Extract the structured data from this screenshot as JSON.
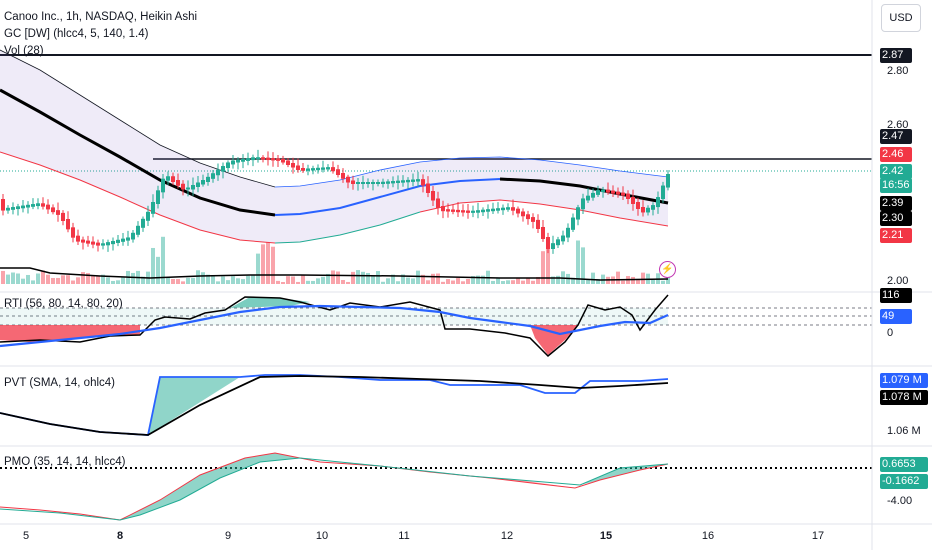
{
  "legend": {
    "symbol": "Canoo Inc., 1h, NASDAQ, Heikin Ashi",
    "gc": "GC [DW] (hlcc4, 5, 140, 1.4)",
    "vol": "Vol (28)",
    "rti": "RTI (56, 80, 14, 80, 20)",
    "pvt": "PVT (SMA, 14, ohlc4)",
    "pmo": "PMO (35, 14, 14, hlcc4)"
  },
  "currency_button": "USD",
  "price_axis": {
    "ticks": [
      "2.80",
      "2.60",
      "2.00"
    ],
    "tags": [
      {
        "text": "2.87",
        "color": "#131722"
      },
      {
        "text": "2.47",
        "color": "#131722"
      },
      {
        "text": "2.46",
        "color": "#f23645"
      },
      {
        "text": "2.42",
        "color": "#22ab94"
      },
      {
        "text": "16:56",
        "color": "#22ab94"
      },
      {
        "text": "2.39",
        "color": "#000000"
      },
      {
        "text": "2.30",
        "color": "#000000"
      },
      {
        "text": "2.21",
        "color": "#f23645"
      }
    ]
  },
  "rti_axis": {
    "ticks": [
      "0"
    ],
    "tags": [
      {
        "text": "116",
        "color": "#000000"
      },
      {
        "text": "49",
        "color": "#2962ff"
      }
    ]
  },
  "pvt_axis": {
    "ticks": [
      "1.06 M"
    ],
    "tags": [
      {
        "text": "1.079 M",
        "color": "#2962ff"
      },
      {
        "text": "1.078 M",
        "color": "#000000"
      }
    ]
  },
  "pmo_axis": {
    "ticks": [
      "-4.00"
    ],
    "tags": [
      {
        "text": "0.6653",
        "color": "#22ab94"
      },
      {
        "text": "-0.1662",
        "color": "#22ab94"
      }
    ]
  },
  "time_axis": [
    {
      "text": "5",
      "bold": false
    },
    {
      "text": "8",
      "bold": true
    },
    {
      "text": "9",
      "bold": false
    },
    {
      "text": "10",
      "bold": false
    },
    {
      "text": "11",
      "bold": false
    },
    {
      "text": "12",
      "bold": false
    },
    {
      "text": "15",
      "bold": true
    },
    {
      "text": "16",
      "bold": false
    },
    {
      "text": "17",
      "bold": false
    }
  ],
  "colors": {
    "up": "#22ab94",
    "down": "#f23645",
    "blue": "#2962ff",
    "black": "#000000"
  },
  "alert_icon": "lightning-icon"
}
